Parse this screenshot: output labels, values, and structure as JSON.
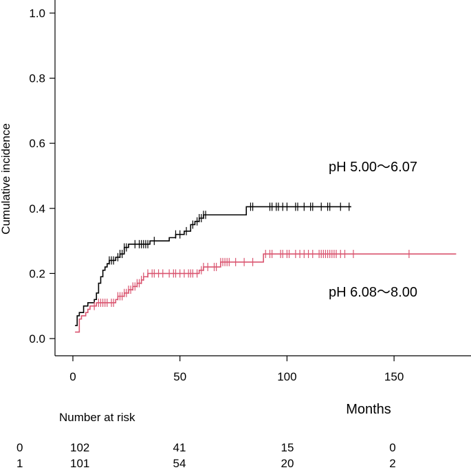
{
  "chart_data": {
    "type": "line",
    "subtype": "step",
    "xlabel": "Months",
    "ylabel": "Cumulative incidence",
    "xlim": [
      0,
      185
    ],
    "ylim": [
      0,
      1.0
    ],
    "x_ticks": [
      0,
      50,
      100,
      150
    ],
    "y_ticks": [
      0.0,
      0.2,
      0.4,
      0.6,
      0.8,
      1.0
    ],
    "x_tick_labels": [
      "0",
      "50",
      "100",
      "150"
    ],
    "y_tick_labels": [
      "0.0",
      "0.2",
      "0.4",
      "0.6",
      "0.8",
      "1.0"
    ],
    "grid": false,
    "series": [
      {
        "name": "pH 5.00〜6.07",
        "color": "#000000",
        "steps": [
          [
            1,
            0.04
          ],
          [
            2,
            0.07
          ],
          [
            3,
            0.08
          ],
          [
            5,
            0.1
          ],
          [
            7,
            0.11
          ],
          [
            10,
            0.12
          ],
          [
            11,
            0.14
          ],
          [
            12,
            0.17
          ],
          [
            13,
            0.19
          ],
          [
            14,
            0.21
          ],
          [
            15,
            0.22
          ],
          [
            16,
            0.23
          ],
          [
            17,
            0.24
          ],
          [
            20,
            0.25
          ],
          [
            22,
            0.26
          ],
          [
            24,
            0.28
          ],
          [
            26,
            0.29
          ],
          [
            36,
            0.3
          ],
          [
            45,
            0.31
          ],
          [
            48,
            0.32
          ],
          [
            52,
            0.33
          ],
          [
            55,
            0.35
          ],
          [
            57,
            0.36
          ],
          [
            59,
            0.37
          ],
          [
            61,
            0.38
          ],
          [
            81,
            0.405
          ],
          [
            130,
            0.405
          ]
        ],
        "censored": [
          17,
          18,
          19,
          21,
          22,
          23,
          24,
          25,
          29,
          31,
          32,
          33,
          34,
          35,
          38,
          48,
          50,
          53,
          56,
          58,
          59,
          60,
          61,
          62,
          83,
          84,
          92,
          93,
          95,
          96,
          98,
          100,
          104,
          105,
          108,
          111,
          112,
          116,
          119,
          120,
          125,
          129
        ]
      },
      {
        "name": "pH 6.08〜8.00",
        "color": "#d9546f",
        "steps": [
          [
            1,
            0.02
          ],
          [
            3,
            0.06
          ],
          [
            4,
            0.07
          ],
          [
            6,
            0.08
          ],
          [
            7,
            0.09
          ],
          [
            8,
            0.1
          ],
          [
            11,
            0.11
          ],
          [
            20,
            0.12
          ],
          [
            21,
            0.13
          ],
          [
            24,
            0.14
          ],
          [
            26,
            0.15
          ],
          [
            28,
            0.16
          ],
          [
            30,
            0.17
          ],
          [
            32,
            0.18
          ],
          [
            33,
            0.19
          ],
          [
            35,
            0.2
          ],
          [
            59,
            0.21
          ],
          [
            61,
            0.22
          ],
          [
            69,
            0.235
          ],
          [
            89,
            0.26
          ],
          [
            179,
            0.26
          ]
        ],
        "censored": [
          10,
          12,
          13,
          14,
          15,
          16,
          18,
          19,
          21,
          22,
          23,
          24,
          25,
          26,
          27,
          28,
          29,
          30,
          31,
          32,
          33,
          35,
          37,
          38,
          40,
          42,
          45,
          47,
          48,
          50,
          52,
          54,
          55,
          56,
          58,
          60,
          61,
          63,
          66,
          67,
          69,
          70,
          71,
          72,
          73,
          76,
          80,
          84,
          90,
          92,
          93,
          97,
          98,
          100,
          101,
          104,
          106,
          108,
          110,
          112,
          115,
          116,
          117,
          118,
          119,
          120,
          121,
          122,
          123,
          125,
          127,
          131,
          157
        ]
      }
    ],
    "annotations": [
      {
        "text": "pH 5.00〜6.07",
        "series": 0
      },
      {
        "text": "pH 6.08〜8.00",
        "series": 1
      }
    ],
    "risk_table": {
      "title": "Number at risk",
      "times": [
        0,
        50,
        100,
        150
      ],
      "rows": [
        {
          "label": "0",
          "values": [
            "102",
            "41",
            "15",
            "0"
          ]
        },
        {
          "label": "1",
          "values": [
            "101",
            "54",
            "20",
            "2"
          ]
        }
      ]
    }
  }
}
